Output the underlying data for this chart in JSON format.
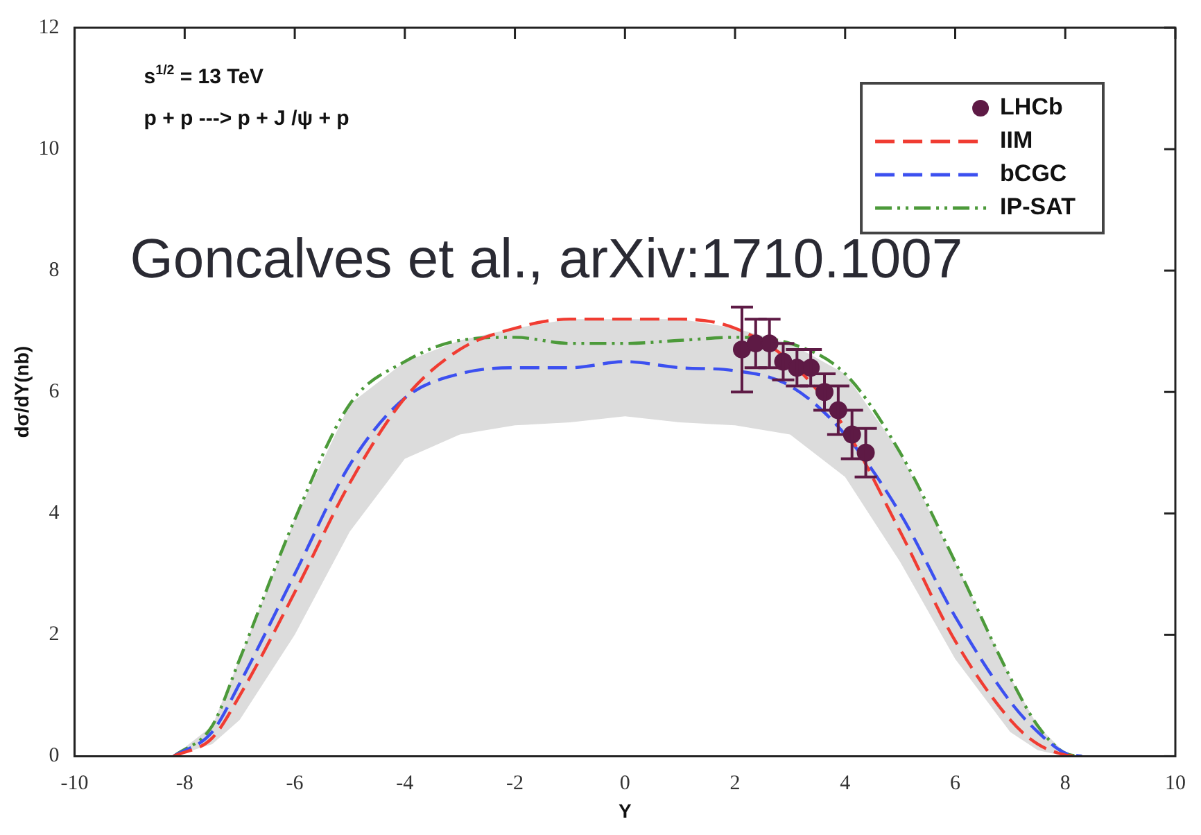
{
  "chart_data": {
    "type": "line",
    "xlabel": "Y",
    "ylabel": "dσ/dY(nb)",
    "annotations": [
      "s$^{1/2}$ = 13 TeV",
      "p + p ---> p + J /ψ + p",
      "Goncalves et al., arXiv:1710.1007"
    ],
    "xlim": [
      -10,
      10
    ],
    "xticks": [
      -10,
      -8,
      -6,
      -4,
      -2,
      0,
      2,
      4,
      6,
      8,
      10
    ],
    "ylim": [
      0,
      12
    ],
    "yticks": [
      0,
      2,
      4,
      6,
      8,
      10,
      12
    ],
    "grid": false,
    "legend": "top right",
    "series": [
      {
        "name": "LHCb",
        "type": "scatter",
        "marker": "circle",
        "color": "#5e1a45",
        "x": [
          2.125,
          2.375,
          2.625,
          2.875,
          3.125,
          3.375,
          3.625,
          3.875,
          4.125,
          4.375
        ],
        "values": [
          6.7,
          6.8,
          6.8,
          6.5,
          6.4,
          6.4,
          6.0,
          5.7,
          5.3,
          5.0
        ],
        "errors": [
          0.7,
          0.4,
          0.4,
          0.3,
          0.3,
          0.3,
          0.3,
          0.4,
          0.4,
          0.4
        ]
      },
      {
        "name": "IIM",
        "marker": "none",
        "line_style": "dashed",
        "color": "#f03c32",
        "x": [
          -8.2,
          -7.5,
          -7,
          -6,
          -5,
          -4,
          -3,
          -2,
          -1,
          0,
          1,
          2,
          3,
          4,
          5,
          6,
          7,
          7.5,
          8,
          8.2
        ],
        "values": [
          0,
          0.3,
          1.0,
          2.7,
          4.5,
          5.9,
          6.7,
          7.05,
          7.2,
          7.2,
          7.2,
          7.05,
          6.5,
          5.4,
          3.7,
          1.9,
          0.6,
          0.2,
          0.02,
          0
        ]
      },
      {
        "name": "bCGC",
        "marker": "none",
        "line_style": "dashed",
        "color": "#3c50f0",
        "x": [
          -8.2,
          -7.5,
          -7,
          -6,
          -5,
          -4,
          -3,
          -2,
          -1,
          0,
          1,
          2,
          3,
          4,
          5,
          6,
          7,
          7.5,
          8,
          8.3
        ],
        "values": [
          0,
          0.4,
          1.2,
          3.0,
          4.8,
          5.9,
          6.3,
          6.4,
          6.4,
          6.5,
          6.4,
          6.35,
          6.1,
          5.3,
          4.0,
          2.3,
          0.9,
          0.4,
          0.05,
          0
        ],
        "lower": [
          0,
          0.2,
          0.6,
          2.0,
          3.7,
          4.9,
          5.3,
          5.45,
          5.5,
          5.6,
          5.5,
          5.45,
          5.3,
          4.6,
          3.2,
          1.6,
          0.4,
          0.1,
          0,
          0
        ],
        "upper": [
          0,
          0.5,
          1.6,
          3.9,
          5.8,
          6.5,
          6.85,
          7.05,
          7.2,
          7.2,
          7.2,
          7.05,
          6.8,
          6.3,
          5.0,
          3.2,
          1.3,
          0.5,
          0.05,
          0
        ]
      },
      {
        "name": "IP-SAT",
        "marker": "none",
        "line_style": "dotted",
        "color": "#4c9a3a",
        "x": [
          -8.2,
          -7.5,
          -7,
          -6,
          -5,
          -4,
          -3,
          -2,
          -1,
          0,
          1,
          2,
          3,
          4,
          5,
          6,
          7,
          7.5,
          8,
          8.3
        ],
        "values": [
          0,
          0.5,
          1.6,
          3.9,
          5.8,
          6.5,
          6.85,
          6.9,
          6.8,
          6.8,
          6.85,
          6.9,
          6.8,
          6.3,
          5.0,
          3.2,
          1.3,
          0.5,
          0.05,
          0
        ]
      }
    ]
  }
}
